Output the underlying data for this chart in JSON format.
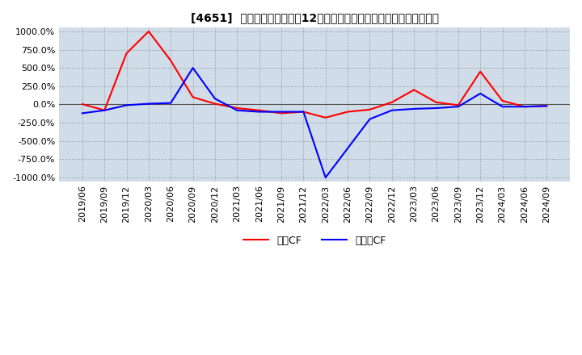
{
  "title": "[4651]  キャッシュフローの12か月移動合計の対前年同期増減率の推移",
  "legend_labels": [
    "営業CF",
    "フリーCF"
  ],
  "line_colors": [
    "#ff0000",
    "#0000ff"
  ],
  "plot_bg_color": "#d0dce8",
  "ylim": [
    -1050,
    1050
  ],
  "yticks": [
    -1000,
    -750,
    -500,
    -250,
    0,
    250,
    500,
    750,
    1000
  ],
  "ytick_labels": [
    "-1000.0%",
    "-750.0%",
    "-500.0%",
    "-250.0%",
    "0.0%",
    "250.0%",
    "500.0%",
    "750.0%",
    "1000.0%"
  ],
  "x_dates": [
    "2019/06",
    "2019/09",
    "2019/12",
    "2020/03",
    "2020/06",
    "2020/09",
    "2020/12",
    "2021/03",
    "2021/06",
    "2021/09",
    "2021/12",
    "2022/03",
    "2022/06",
    "2022/09",
    "2022/12",
    "2023/03",
    "2023/06",
    "2023/09",
    "2023/12",
    "2024/03",
    "2024/06",
    "2024/09"
  ],
  "operating_cf": [
    5,
    -80,
    700,
    1000,
    600,
    100,
    10,
    -50,
    -80,
    -120,
    -100,
    -180,
    -100,
    -70,
    30,
    200,
    30,
    -10,
    450,
    50,
    -30,
    -20
  ],
  "free_cf": [
    -120,
    -80,
    -10,
    10,
    20,
    500,
    80,
    -80,
    -100,
    -100,
    -100,
    -1000,
    -600,
    -200,
    -80,
    -60,
    -50,
    -30,
    150,
    -30,
    -30,
    -20
  ]
}
